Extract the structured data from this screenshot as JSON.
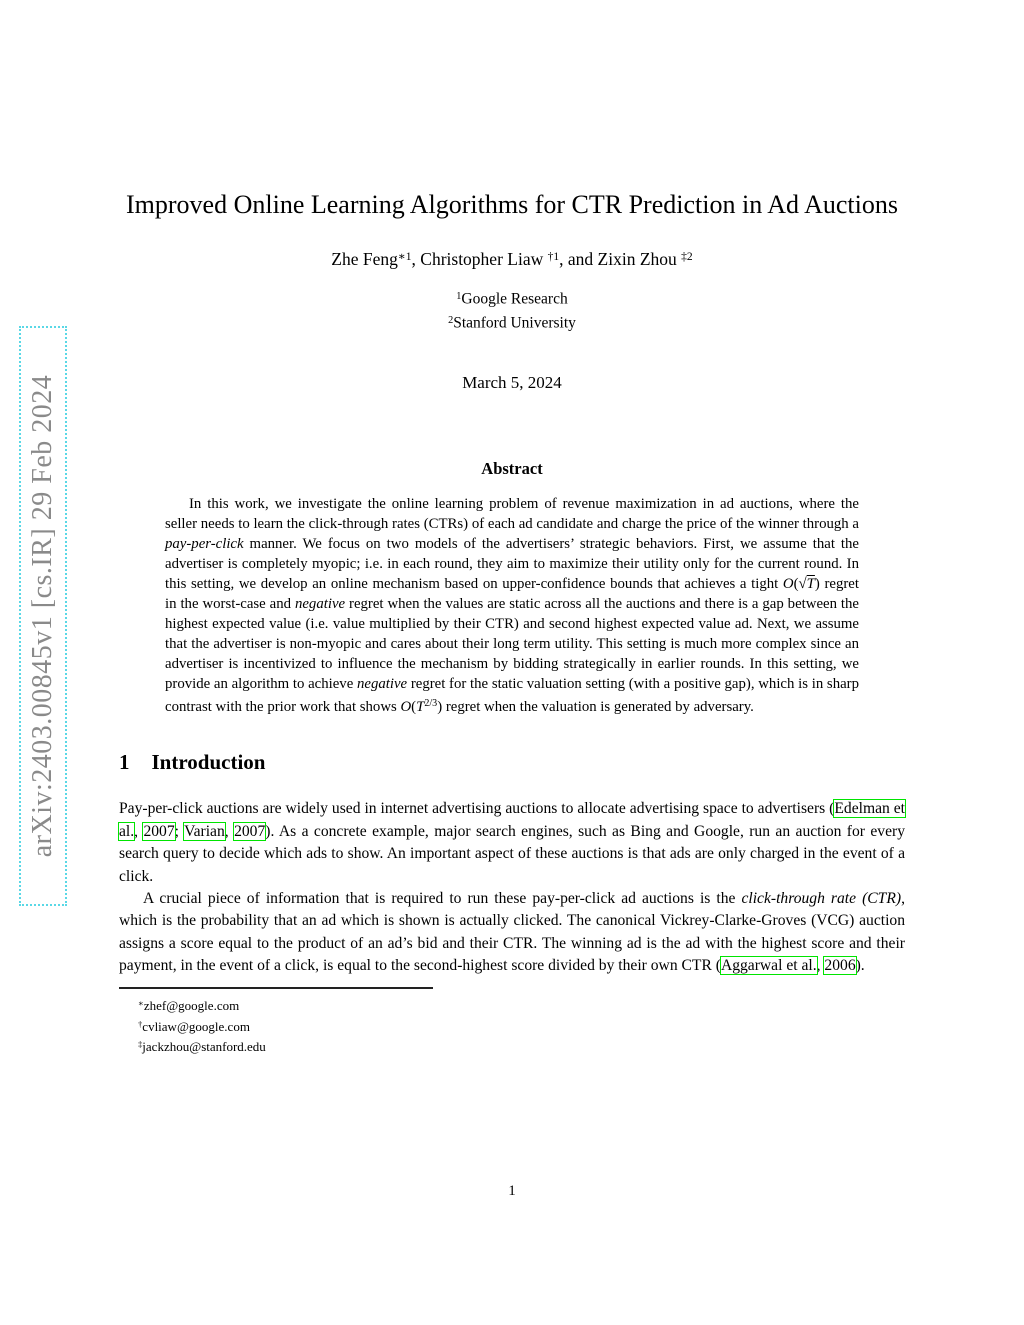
{
  "colors": {
    "citation_box": "#00e400",
    "watermark_text": "#8a8a8a",
    "watermark_border": "#5ad8e6"
  },
  "watermark": {
    "text": "arXiv:2403.00845v1 [cs.IR] 29 Feb 2024"
  },
  "header": {
    "title": "Improved Online Learning Algorithms for CTR Prediction in Ad Auctions",
    "authors": [
      {
        "t": "Zhe Feng",
        "s": "n"
      },
      {
        "t": "∗1",
        "s": "sup"
      },
      {
        "t": ", Christopher Liaw ",
        "s": "n"
      },
      {
        "t": "†1",
        "s": "sup"
      },
      {
        "t": ", and Zixin Zhou ",
        "s": "n"
      },
      {
        "t": "‡2",
        "s": "sup"
      }
    ],
    "affiliation_1": [
      {
        "t": "1",
        "s": "sup"
      },
      {
        "t": "Google Research",
        "s": "n"
      }
    ],
    "affiliation_2": [
      {
        "t": "2",
        "s": "sup"
      },
      {
        "t": "Stanford University",
        "s": "n"
      }
    ],
    "date": "March 5, 2024"
  },
  "abstract": {
    "heading": "Abstract",
    "body": [
      {
        "t": "In this work, we investigate the online learning problem of revenue maximization in ad auctions, where the seller needs to learn the click-through rates (CTRs) of each ad candidate and charge the price of the winner through a ",
        "s": "n"
      },
      {
        "t": "pay-per-click",
        "s": "i"
      },
      {
        "t": " manner. We focus on two models of the advertisers’ strategic behaviors. First, we assume that the advertiser is completely myopic; i.e. in each round, they aim to maximize their utility only for the current round. In this setting, we develop an online mechanism based on upper-confidence bounds that achieves a tight ",
        "s": "n"
      },
      {
        "t": "O",
        "s": "mi"
      },
      {
        "t": "(",
        "s": "m"
      },
      {
        "t": "√",
        "s": "m"
      },
      {
        "t": "T",
        "s": "msqrt"
      },
      {
        "t": ")",
        "s": "m"
      },
      {
        "t": " regret in the worst-case and ",
        "s": "n"
      },
      {
        "t": "negative",
        "s": "i"
      },
      {
        "t": " regret when the values are static across all the auctions and there is a gap between the highest expected value (i.e. value multiplied by their CTR) and second highest expected value ad. Next, we assume that the advertiser is non-myopic and cares about their long term utility. This setting is much more complex since an advertiser is incentivized to influence the mechanism by bidding strategically in earlier rounds. In this setting, we provide an algorithm to achieve ",
        "s": "n"
      },
      {
        "t": "negative",
        "s": "i"
      },
      {
        "t": " regret for the static valuation setting (with a positive gap), which is in sharp contrast with the prior work that shows ",
        "s": "n"
      },
      {
        "t": "O",
        "s": "mi"
      },
      {
        "t": "(",
        "s": "m"
      },
      {
        "t": "T",
        "s": "mi"
      },
      {
        "t": "2/3",
        "s": "msup"
      },
      {
        "t": ")",
        "s": "m"
      },
      {
        "t": " regret when the valuation is generated by adversary.",
        "s": "n"
      }
    ]
  },
  "section": {
    "number": "1",
    "title": "Introduction"
  },
  "intro": {
    "paragraph_1": [
      {
        "t": "Pay-per-click auctions are widely used in internet advertising auctions to allocate advertising space to advertisers (",
        "s": "n"
      },
      {
        "t": "Edelman et al.",
        "s": "cite"
      },
      {
        "t": ", ",
        "s": "n"
      },
      {
        "t": "2007",
        "s": "cite"
      },
      {
        "t": "; ",
        "s": "n"
      },
      {
        "t": "Varian",
        "s": "cite"
      },
      {
        "t": ", ",
        "s": "n"
      },
      {
        "t": "2007",
        "s": "cite"
      },
      {
        "t": "). As a concrete example, major search engines, such as Bing and Google, run an auction for every search query to decide which ads to show. An important aspect of these auctions is that ads are only charged in the event of a click.",
        "s": "n"
      }
    ],
    "paragraph_2": [
      {
        "t": "A crucial piece of information that is required to run these pay-per-click ad auctions is the ",
        "s": "n"
      },
      {
        "t": "click-through rate (CTR)",
        "s": "i"
      },
      {
        "t": ", which is the probability that an ad which is shown is actually clicked. The canonical Vickrey-Clarke-Groves (VCG) auction assigns a score equal to the product of an ad’s bid and their CTR. The winning ad is the ad with the highest score and their payment, in the event of a click, is equal to the second-highest score divided by their own CTR (",
        "s": "n"
      },
      {
        "t": "Aggarwal et al.",
        "s": "cite"
      },
      {
        "t": ", ",
        "s": "n"
      },
      {
        "t": "2006",
        "s": "cite"
      },
      {
        "t": ").",
        "s": "n"
      }
    ]
  },
  "footnotes": {
    "footnote_1": [
      {
        "t": "∗",
        "s": "sup"
      },
      {
        "t": "zhef@google.com",
        "s": "n"
      }
    ],
    "footnote_2": [
      {
        "t": "†",
        "s": "sup"
      },
      {
        "t": "cvliaw@google.com",
        "s": "n"
      }
    ],
    "footnote_3": [
      {
        "t": "‡",
        "s": "sup"
      },
      {
        "t": "jackzhou@stanford.edu",
        "s": "n"
      }
    ]
  },
  "footer": {
    "page_number": "1"
  }
}
